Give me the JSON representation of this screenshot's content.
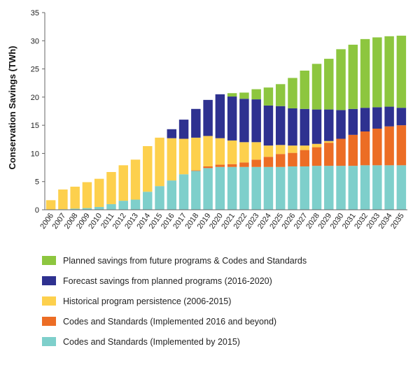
{
  "chart_data": {
    "type": "bar",
    "stacked": true,
    "ylabel": "Conservation Savings (TWh)",
    "xlabel": "",
    "ylim": [
      0,
      35
    ],
    "yticks": [
      0,
      5,
      10,
      15,
      20,
      25,
      30,
      35
    ],
    "grid": false,
    "legend_position": "bottom",
    "categories": [
      "2006",
      "2007",
      "2008",
      "2009",
      "2010",
      "2011",
      "2012",
      "2013",
      "2014",
      "2015",
      "2016",
      "2017",
      "2018",
      "2019",
      "2020",
      "2021",
      "2022",
      "2023",
      "2024",
      "2025",
      "2026",
      "2027",
      "2028",
      "2029",
      "2030",
      "2031",
      "2032",
      "2033",
      "2034",
      "2035"
    ],
    "series": [
      {
        "name": "Codes and Standards (Implemented by 2015)",
        "color": "#7ecfcb",
        "values": [
          0,
          0.1,
          0.2,
          0.3,
          0.5,
          1.0,
          1.6,
          1.8,
          3.2,
          4.2,
          5.2,
          6.3,
          6.9,
          7.4,
          7.6,
          7.6,
          7.6,
          7.6,
          7.6,
          7.6,
          7.7,
          7.7,
          7.8,
          7.8,
          7.8,
          7.8,
          7.9,
          7.9,
          7.9,
          7.9
        ]
      },
      {
        "name": "Codes and Standards (Implemented 2016 and beyond)",
        "color": "#ec6d25",
        "values": [
          0,
          0,
          0,
          0,
          0,
          0,
          0,
          0,
          0,
          0,
          0,
          0,
          0.1,
          0.3,
          0.4,
          0.5,
          0.8,
          1.3,
          1.8,
          2.3,
          2.4,
          2.9,
          3.3,
          4.1,
          4.8,
          5.5,
          6.0,
          6.5,
          6.9,
          7.1
        ]
      },
      {
        "name": "Historical program persistence (2006-2015)",
        "color": "#fdd04d",
        "values": [
          1.7,
          3.5,
          3.9,
          4.6,
          5.0,
          5.7,
          6.3,
          7.1,
          8.1,
          8.6,
          7.5,
          6.3,
          5.8,
          5.4,
          4.7,
          4.2,
          3.6,
          3.1,
          2.0,
          1.6,
          1.3,
          0.8,
          0.6,
          0.3,
          0,
          0,
          0,
          0,
          0,
          0
        ]
      },
      {
        "name": "Forecast savings from planned programs (2016-2020)",
        "color": "#2e3190",
        "values": [
          0,
          0,
          0,
          0,
          0,
          0,
          0,
          0,
          0,
          0,
          1.6,
          3.4,
          5.1,
          6.4,
          7.8,
          7.8,
          7.7,
          7.6,
          7.1,
          6.9,
          6.6,
          6.5,
          6.1,
          5.6,
          5.1,
          4.6,
          4.2,
          3.8,
          3.5,
          3.1
        ]
      },
      {
        "name": "Planned savings from future programs & Codes and Standards",
        "color": "#8dc63f",
        "values": [
          0,
          0,
          0,
          0,
          0,
          0,
          0,
          0,
          0,
          0,
          0,
          0,
          0,
          0,
          0,
          0.6,
          1.1,
          1.8,
          3.2,
          3.9,
          5.4,
          6.8,
          8.1,
          9.0,
          10.8,
          11.4,
          12.2,
          12.4,
          12.5,
          12.8
        ]
      }
    ],
    "legend_order": [
      4,
      3,
      2,
      1,
      0
    ]
  }
}
